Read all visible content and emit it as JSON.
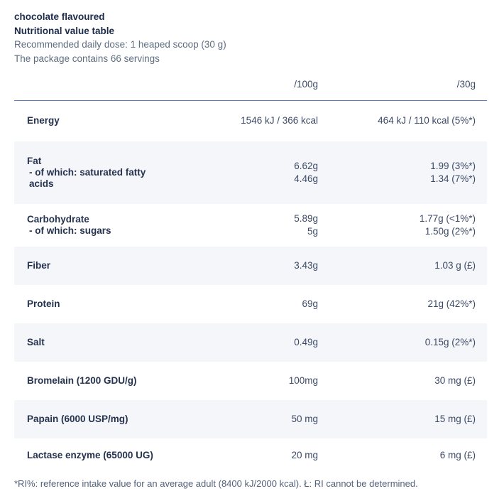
{
  "header": {
    "flavour": "chocolate flavoured",
    "title": "Nutritional value table",
    "dose": "Recommended daily dose: 1 heaped scoop (30 g)",
    "servings": "The package contains 66 servings"
  },
  "table": {
    "columns": {
      "per100": "/100g",
      "per30": "/30g"
    },
    "rows": [
      {
        "label_lines": [
          "Energy"
        ],
        "per100_lines": [
          "1546 kJ / 366 kcal"
        ],
        "per30_lines": [
          "464 kJ / 110 kcal (5%*)"
        ]
      },
      {
        "label_lines": [
          "Fat",
          " - of which: saturated fatty acids"
        ],
        "per100_lines": [
          "6.62g",
          "4.46g"
        ],
        "per30_lines": [
          "1.99 (3%*)",
          "1.34 (7%*)"
        ]
      },
      {
        "label_lines": [
          "Carbohydrate",
          " - of which: sugars"
        ],
        "per100_lines": [
          "5.89g",
          "5g"
        ],
        "per30_lines": [
          "1.77g (<1%*)",
          "1.50g (2%*)"
        ]
      },
      {
        "label_lines": [
          "Fiber"
        ],
        "per100_lines": [
          "3.43g"
        ],
        "per30_lines": [
          "1.03 g (£)"
        ]
      },
      {
        "label_lines": [
          "Protein"
        ],
        "per100_lines": [
          "69g"
        ],
        "per30_lines": [
          "21g (42%*)"
        ]
      },
      {
        "label_lines": [
          "Salt"
        ],
        "per100_lines": [
          "0.49g"
        ],
        "per30_lines": [
          "0.15g (2%*)"
        ]
      },
      {
        "label_lines": [
          "Bromelain (1200 GDU/g)"
        ],
        "per100_lines": [
          "100mg"
        ],
        "per30_lines": [
          "30 mg (£)"
        ]
      },
      {
        "label_lines": [
          "Papain (6000 USP/mg)"
        ],
        "per100_lines": [
          "50 mg"
        ],
        "per30_lines": [
          "15 mg (£)"
        ]
      },
      {
        "label_lines": [
          "Lactase enzyme (65000 UG)"
        ],
        "per100_lines": [
          "20 mg"
        ],
        "per30_lines": [
          "6 mg (£)"
        ]
      }
    ]
  },
  "footnote": "*RI%: reference intake value for an average adult (8400 kJ/2000 kcal). Ł: RI cannot be determined."
}
